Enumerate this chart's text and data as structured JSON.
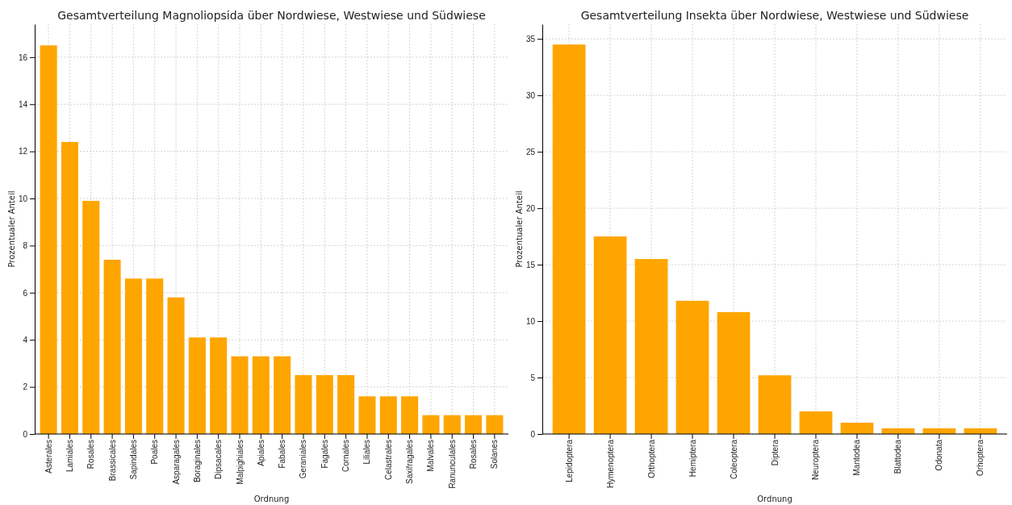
{
  "chart_data": [
    {
      "type": "bar",
      "title": "Gesamtverteilung Magnoliopsida über Nordwiese, Westwiese und Südwiese",
      "xlabel": "Ordnung",
      "ylabel": "Prozentualer Anteil",
      "categories": [
        "Asterales",
        "Lamiales",
        "Rosales",
        "Brassicales",
        "Sapindales",
        "Poales",
        "Asparagales",
        "Boraginales",
        "Dipsacales",
        "Malpighiales",
        "Apiales",
        "Fabales",
        "Geraniales",
        "Fagales",
        "Cornales",
        "Liliales",
        "Celastrales",
        "Saxifragales",
        "Malvales",
        "Ranunculales",
        "Rosales",
        "Solanes"
      ],
      "values": [
        16.5,
        12.4,
        9.9,
        7.4,
        6.6,
        6.6,
        5.8,
        4.1,
        4.1,
        3.3,
        3.3,
        3.3,
        2.5,
        2.5,
        2.5,
        1.6,
        1.6,
        1.6,
        0.8,
        0.8,
        0.8,
        0.8
      ],
      "color": "#ffa500",
      "ylim": [
        0,
        17.4
      ],
      "yticks": [
        0,
        2,
        4,
        6,
        8,
        10,
        12,
        14,
        16
      ],
      "grid": true
    },
    {
      "type": "bar",
      "title": "Gesamtverteilung Insekta über Nordwiese, Westwiese und Südwiese",
      "xlabel": "Ordnung",
      "ylabel": "Prozentualer Anteil",
      "categories": [
        "Lepidoptera",
        "Hymenoptera",
        "Orthoptera",
        "Hemiptera",
        "Coleoptera",
        "Diptera",
        "Neuroptera",
        "Mantodea",
        "Blattodea",
        "Odonata",
        "Orhoptera"
      ],
      "values": [
        34.5,
        17.5,
        15.5,
        11.8,
        10.8,
        5.2,
        2.0,
        1.0,
        0.5,
        0.5,
        0.5
      ],
      "color": "#ffa500",
      "ylim": [
        0,
        36.3
      ],
      "yticks": [
        0,
        5,
        10,
        15,
        20,
        25,
        30,
        35
      ],
      "grid": true
    }
  ]
}
